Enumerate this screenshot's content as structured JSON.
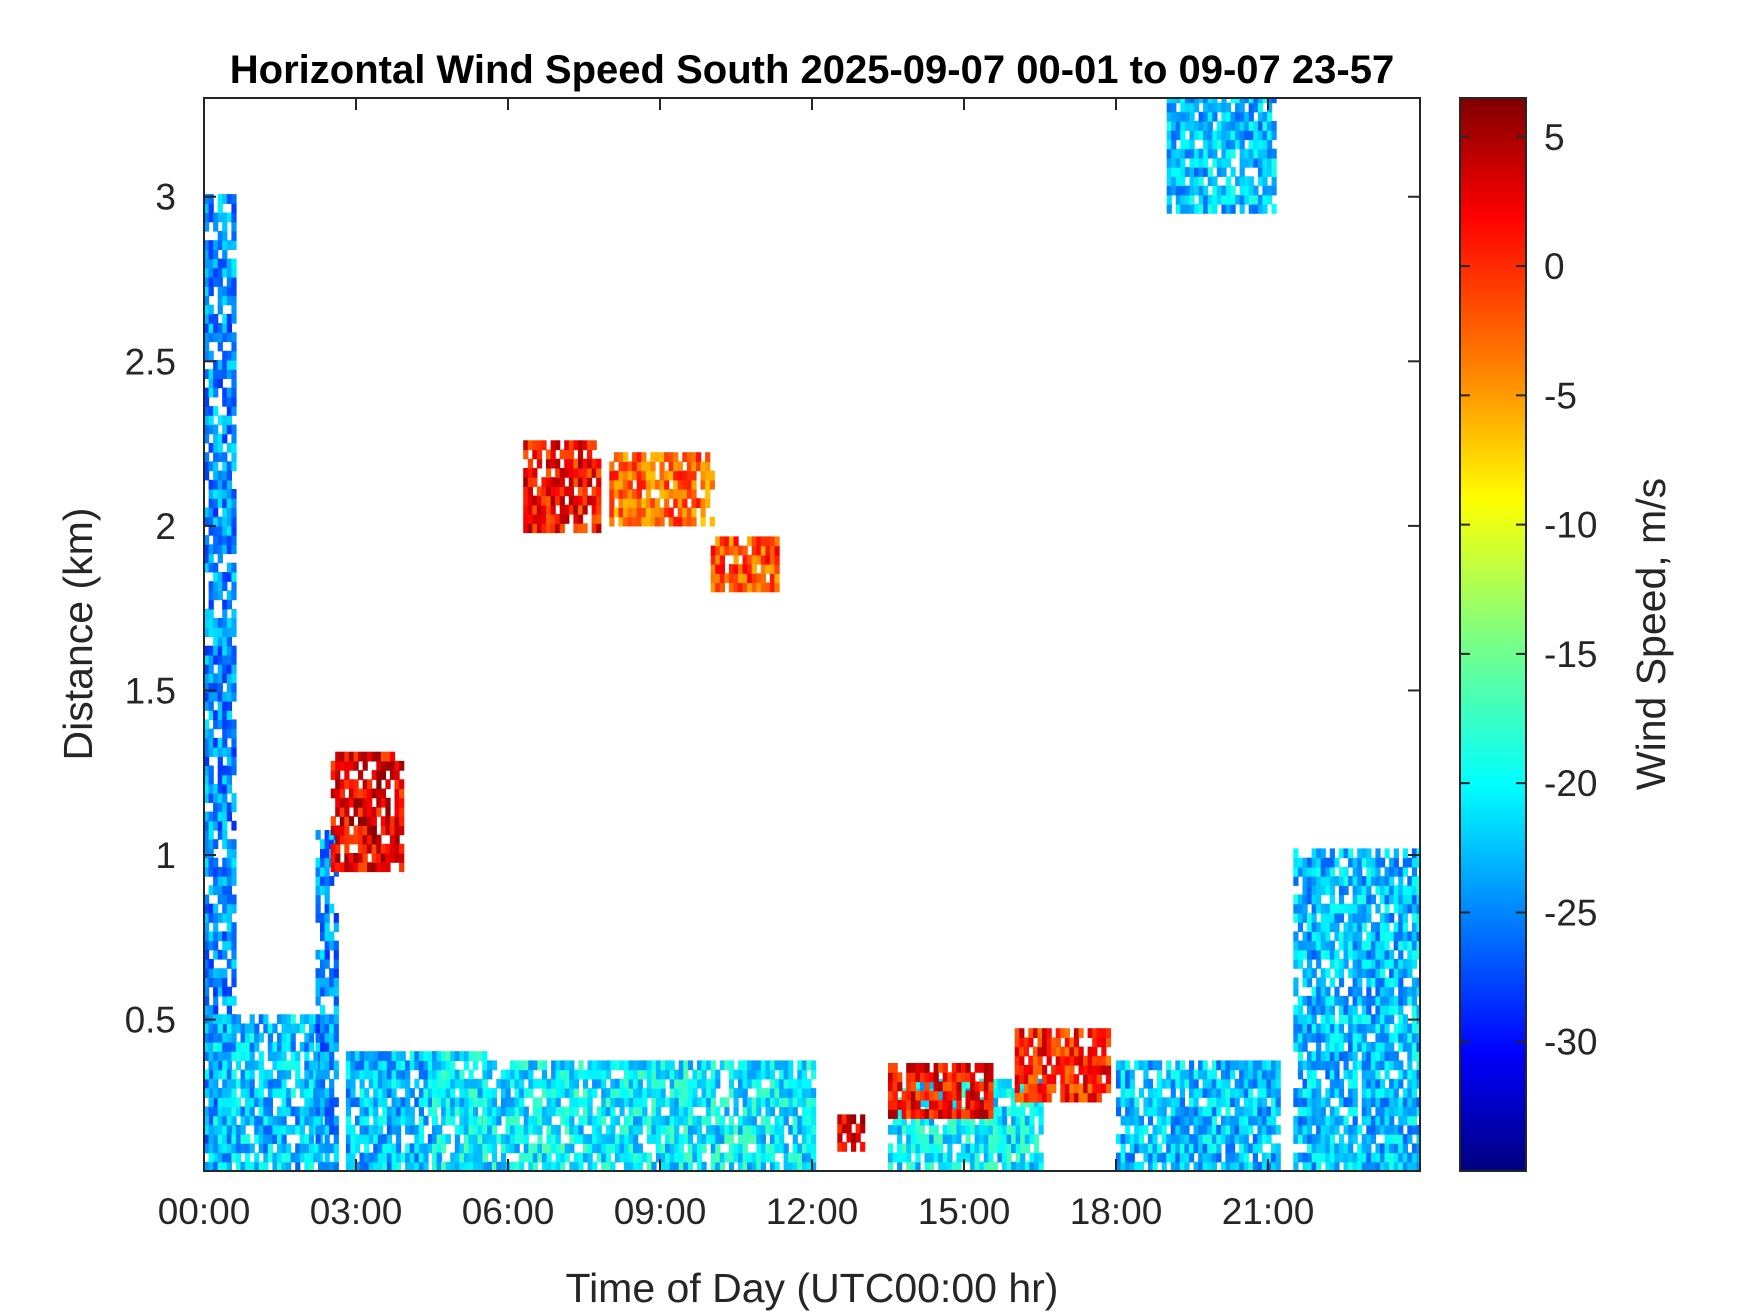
{
  "chart_data": {
    "type": "heatmap",
    "title": "Horizontal Wind Speed South 2025-09-07 00-01 to 09-07 23-57",
    "xlabel": "Time of Day (UTC00:00 hr)",
    "ylabel": "Distance (km)",
    "colorbar_label": "Wind Speed, m/s",
    "x_ticks": [
      "00:00",
      "03:00",
      "06:00",
      "09:00",
      "12:00",
      "15:00",
      "18:00",
      "21:00"
    ],
    "x_tick_hours": [
      0,
      3,
      6,
      9,
      12,
      15,
      18,
      21
    ],
    "xlim_hours": [
      0,
      24
    ],
    "y_ticks": [
      "0.5",
      "1",
      "1.5",
      "2",
      "2.5",
      "3"
    ],
    "y_tick_values": [
      0.5,
      1,
      1.5,
      2,
      2.5,
      3
    ],
    "ylim_km": [
      0.04,
      3.3
    ],
    "colorbar_ticks": [
      "5",
      "0",
      "-5",
      "-10",
      "-15",
      "-20",
      "-25",
      "-30"
    ],
    "colorbar_tick_values": [
      5,
      0,
      -5,
      -10,
      -15,
      -20,
      -25,
      -30
    ],
    "clim": [
      -35,
      6.5
    ],
    "colormap": "jet",
    "regions": [
      {
        "hours": [
          0,
          0.6
        ],
        "km": [
          0.04,
          3.0
        ],
        "value": -24,
        "note": "dense column at start"
      },
      {
        "hours": [
          0,
          2.3
        ],
        "km": [
          0.04,
          0.5
        ],
        "value": -22
      },
      {
        "hours": [
          2.2,
          2.6
        ],
        "km": [
          0.04,
          1.05
        ],
        "value": -24
      },
      {
        "hours": [
          2.8,
          4.6
        ],
        "km": [
          0.04,
          0.4
        ],
        "value": -22
      },
      {
        "hours": [
          2.5,
          3.9
        ],
        "km": [
          0.95,
          1.3
        ],
        "value": 2,
        "note": "rising warm band"
      },
      {
        "hours": [
          4.5,
          5.5
        ],
        "km": [
          0.04,
          0.4
        ],
        "value": -20
      },
      {
        "hours": [
          5.5,
          12.0
        ],
        "km": [
          0.04,
          0.35
        ],
        "value": -20
      },
      {
        "hours": [
          6.3,
          7.8
        ],
        "km": [
          1.98,
          2.25
        ],
        "value": 1,
        "note": "warm band near 2 km"
      },
      {
        "hours": [
          8.0,
          10.0
        ],
        "km": [
          2.0,
          2.2
        ],
        "value": -3
      },
      {
        "hours": [
          10.0,
          11.3
        ],
        "km": [
          1.8,
          1.95
        ],
        "value": -2
      },
      {
        "hours": [
          12.5,
          13.0
        ],
        "km": [
          0.1,
          0.2
        ],
        "value": 3
      },
      {
        "hours": [
          13.5,
          16.5
        ],
        "km": [
          0.04,
          0.3
        ],
        "value": -20
      },
      {
        "hours": [
          13.5,
          15.5
        ],
        "km": [
          0.2,
          0.35
        ],
        "value": 1
      },
      {
        "hours": [
          16.0,
          17.8
        ],
        "km": [
          0.25,
          0.45
        ],
        "value": 0
      },
      {
        "hours": [
          18.0,
          21.2
        ],
        "km": [
          0.04,
          0.35
        ],
        "value": -22
      },
      {
        "hours": [
          19.0,
          21.1
        ],
        "km": [
          2.95,
          3.3
        ],
        "value": -22,
        "note": "upper patch"
      },
      {
        "hours": [
          21.5,
          24.0
        ],
        "km": [
          0.04,
          1.0
        ],
        "value": -22,
        "note": "late dense block"
      }
    ]
  }
}
